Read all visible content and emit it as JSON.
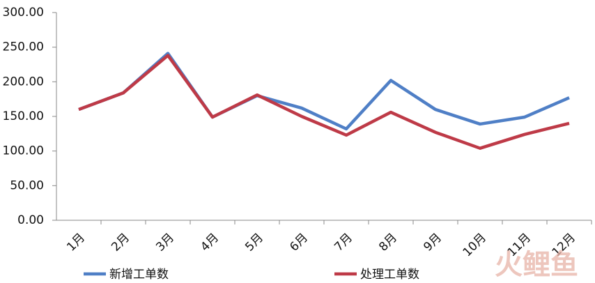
{
  "chart_data": {
    "type": "line",
    "categories": [
      "1月",
      "2月",
      "3月",
      "4月",
      "5月",
      "6月",
      "7月",
      "8月",
      "9月",
      "10月",
      "11月",
      "12月"
    ],
    "series": [
      {
        "name": "新增工单数",
        "color": "#4f7fc6",
        "values": [
          160,
          184,
          241,
          149,
          180,
          162,
          132,
          202,
          160,
          139,
          149,
          177
        ]
      },
      {
        "name": "处理工单数",
        "color": "#be3a47",
        "values": [
          160,
          184,
          238,
          149,
          181,
          150,
          123,
          156,
          127,
          104,
          124,
          140
        ]
      }
    ],
    "ylim": [
      0,
      300
    ],
    "yticks": [
      {
        "value": 0,
        "label": "0.00"
      },
      {
        "value": 50,
        "label": "50.00"
      },
      {
        "value": 100,
        "label": "100.00"
      },
      {
        "value": 150,
        "label": "150.00"
      },
      {
        "value": 200,
        "label": "200.00"
      },
      {
        "value": 250,
        "label": "250.00"
      },
      {
        "value": 300,
        "label": "300.00"
      }
    ],
    "grid": false,
    "legend": "bottom",
    "watermark": "火鲤鱼"
  }
}
